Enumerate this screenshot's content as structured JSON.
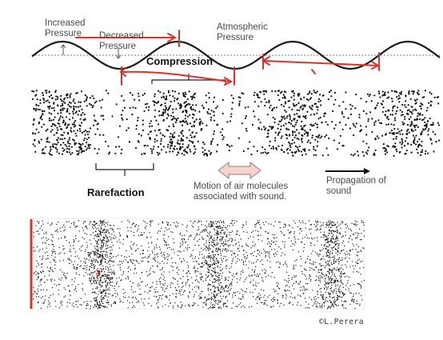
{
  "diagram": {
    "labels": {
      "increased_pressure": [
        "Increased",
        "Pressure"
      ],
      "decreased_pressure": [
        "Decreased",
        "Pressure"
      ],
      "atmospheric_pressure": [
        "Atmospheric",
        "Pressure"
      ],
      "compression": "Compression",
      "rarefaction": "Rarefaction",
      "motion_caption": [
        "Motion of air molecules",
        "associated with sound."
      ],
      "propagation_caption": [
        "Propagation of",
        "sound"
      ]
    },
    "credit": "©L.Perera",
    "colors": {
      "wave": "#1a1a1a",
      "baseline": "#999999",
      "annotation_red": "#d9332b",
      "motion_arrow_fill": "#f6d3cf",
      "dots": "#111111",
      "left_bar": "#d9332b"
    }
  }
}
